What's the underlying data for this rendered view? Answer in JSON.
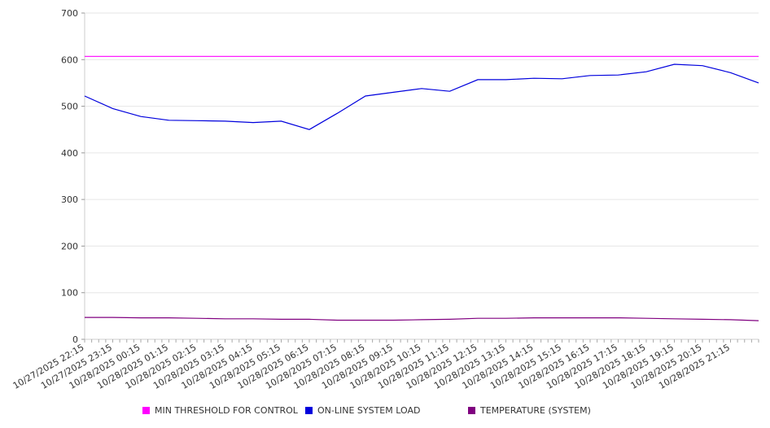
{
  "chart_data": {
    "type": "line",
    "title": "",
    "xlabel": "",
    "ylabel": "",
    "ylim": [
      0,
      700
    ],
    "yticks": [
      0,
      100,
      200,
      300,
      400,
      500,
      600,
      700
    ],
    "grid": "horizontal",
    "legend_position": "bottom",
    "x_tick_labels": [
      "10/27/2025 22:15",
      "10/27/2025 23:15",
      "10/28/2025 00:15",
      "10/28/2025 01:15",
      "10/28/2025 02:15",
      "10/28/2025 03:15",
      "10/28/2025 04:15",
      "10/28/2025 05:15",
      "10/28/2025 06:15",
      "10/28/2025 07:15",
      "10/28/2025 08:15",
      "10/28/2025 09:15",
      "10/28/2025 10:15",
      "10/28/2025 11:15",
      "10/28/2025 12:15",
      "10/28/2025 13:15",
      "10/28/2025 14:15",
      "10/28/2025 15:15",
      "10/28/2025 16:15",
      "10/28/2025 17:15",
      "10/28/2025 18:15",
      "10/28/2025 19:15",
      "10/28/2025 20:15",
      "10/28/2025 21:15"
    ],
    "x_hours": [
      0,
      1,
      2,
      3,
      4,
      5,
      6,
      7,
      8,
      9,
      10,
      11,
      12,
      13,
      14,
      15,
      16,
      17,
      18,
      19,
      20,
      21,
      22,
      23,
      24
    ],
    "series": [
      {
        "name": "MIN THRESHOLD FOR CONTROL",
        "color": "#ff00ff",
        "values": [
          607,
          607,
          607,
          607,
          607,
          607,
          607,
          607,
          607,
          607,
          607,
          607,
          607,
          607,
          607,
          607,
          607,
          607,
          607,
          607,
          607,
          607,
          607,
          607,
          607
        ]
      },
      {
        "name": "ON-LINE SYSTEM LOAD",
        "color": "#0000dd",
        "values": [
          522,
          495,
          478,
          470,
          469,
          468,
          465,
          468,
          450,
          485,
          522,
          530,
          538,
          532,
          557,
          557,
          560,
          559,
          566,
          567,
          574,
          590,
          587,
          572,
          550
        ]
      },
      {
        "name": "TEMPERATURE (SYSTEM)",
        "color": "#800080",
        "values": [
          47,
          47,
          46,
          46,
          45,
          44,
          44,
          43,
          43,
          41,
          41,
          41,
          42,
          43,
          45,
          45,
          46,
          46,
          46,
          46,
          45,
          44,
          43,
          42,
          40
        ]
      }
    ]
  }
}
